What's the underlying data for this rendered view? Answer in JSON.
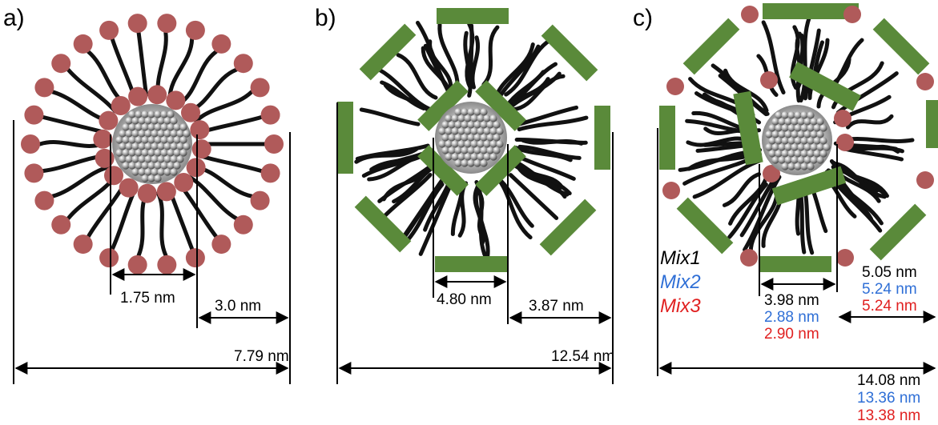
{
  "colors": {
    "head": "#b05a5a",
    "rect": "#5a8a3a",
    "tail": "#111111",
    "mix1": "#000000",
    "mix2": "#2f6fd6",
    "mix3": "#e02020"
  },
  "panels": {
    "a": {
      "label": "a)",
      "core_size": "1.75 nm",
      "shell_size": "3.0 nm",
      "total_size": "7.79 nm"
    },
    "b": {
      "label": "b)",
      "core_size": "4.80 nm",
      "shell_size": "3.87 nm",
      "total_size": "12.54 nm"
    },
    "c": {
      "label": "c)",
      "legend": [
        "Mix1",
        "Mix2",
        "Mix3"
      ],
      "core_sizes": [
        "3.98 nm",
        "2.88 nm",
        "2.90 nm"
      ],
      "shell_sizes": [
        "5.05 nm",
        "5.24 nm",
        "5.24 nm"
      ],
      "total_sizes": [
        "14.08 nm",
        "13.36 nm",
        "13.38 nm"
      ]
    }
  }
}
